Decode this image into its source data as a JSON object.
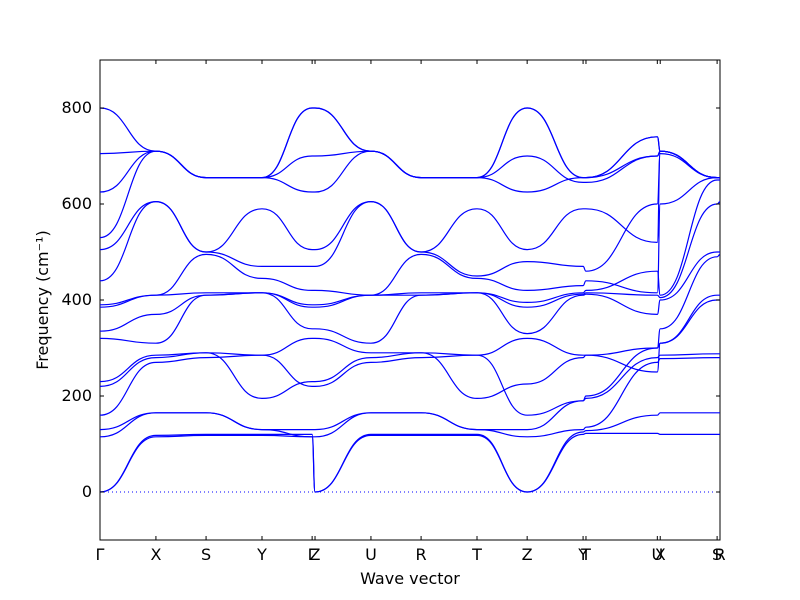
{
  "chart_data": {
    "type": "line",
    "title": "",
    "xlabel": "Wave vector",
    "ylabel": "Frequency (cm⁻¹)",
    "ylim": [
      -100,
      900
    ],
    "yticks": [
      0,
      200,
      400,
      600,
      800
    ],
    "grid": false,
    "legend": "none",
    "line_color": "#0000ff",
    "zero_line_color": "#0000ff",
    "x_ticks": [
      {
        "label": "Γ",
        "value": 0.0
      },
      {
        "label": "X",
        "value": 0.58
      },
      {
        "label": "S",
        "value": 1.1
      },
      {
        "label": "Y",
        "value": 1.68
      },
      {
        "label": "Γ",
        "value": 2.2
      },
      {
        "label": "Z",
        "value": 2.23
      },
      {
        "label": "U",
        "value": 2.81
      },
      {
        "label": "R",
        "value": 3.33
      },
      {
        "label": "T",
        "value": 3.91
      },
      {
        "label": "Z",
        "value": 4.43
      },
      {
        "label": "Y",
        "value": 5.01
      },
      {
        "label": "T",
        "value": 5.04
      },
      {
        "label": "U",
        "value": 5.78
      },
      {
        "label": "X",
        "value": 5.81
      },
      {
        "label": "S",
        "value": 6.4
      },
      {
        "label": "R",
        "value": 6.43
      }
    ],
    "series": [
      {
        "x": [
          0,
          0.58,
          1.1,
          1.68,
          2.2,
          2.23,
          2.81,
          3.33,
          3.91,
          4.43,
          5.01,
          5.04,
          5.78,
          5.81,
          6.4,
          6.43
        ],
        "values": [
          0,
          115,
          118,
          118,
          115,
          0,
          118,
          118,
          118,
          0,
          120,
          122,
          122,
          120,
          120,
          120
        ]
      },
      {
        "x": [
          0,
          0.58,
          1.1,
          1.68,
          2.2,
          2.23,
          2.81,
          3.33,
          3.91,
          4.43,
          5.01,
          5.04,
          5.78,
          5.81,
          6.4,
          6.43
        ],
        "values": [
          0,
          118,
          120,
          120,
          120,
          0,
          120,
          120,
          120,
          0,
          125,
          128,
          160,
          165,
          165,
          165
        ]
      },
      {
        "x": [
          0,
          0.58,
          1.1,
          1.68,
          2.2,
          2.23,
          2.81,
          3.33,
          3.91,
          4.43,
          5.01,
          5.04,
          5.78,
          5.81,
          6.4,
          6.43
        ],
        "values": [
          115,
          165,
          165,
          130,
          115,
          115,
          165,
          165,
          130,
          115,
          130,
          135,
          270,
          278,
          280,
          280
        ]
      },
      {
        "x": [
          0,
          0.58,
          1.1,
          1.68,
          2.2,
          2.23,
          2.81,
          3.33,
          3.91,
          4.43,
          5.01,
          5.04,
          5.78,
          5.81,
          6.4,
          6.43
        ],
        "values": [
          130,
          165,
          165,
          130,
          130,
          130,
          165,
          165,
          130,
          130,
          190,
          195,
          280,
          285,
          288,
          288
        ]
      },
      {
        "x": [
          0,
          0.58,
          1.1,
          1.68,
          2.2,
          2.23,
          2.81,
          3.33,
          3.91,
          4.43,
          5.01,
          5.04,
          5.78,
          5.81,
          6.4,
          6.43
        ],
        "values": [
          160,
          270,
          280,
          285,
          220,
          220,
          270,
          280,
          285,
          160,
          190,
          200,
          300,
          310,
          400,
          400
        ]
      },
      {
        "x": [
          0,
          0.58,
          1.1,
          1.68,
          2.2,
          2.23,
          2.81,
          3.33,
          3.91,
          4.43,
          5.01,
          5.04,
          5.78,
          5.81,
          6.4,
          6.43
        ],
        "values": [
          220,
          280,
          290,
          195,
          230,
          230,
          280,
          290,
          195,
          225,
          280,
          285,
          250,
          310,
          410,
          410
        ]
      },
      {
        "x": [
          0,
          0.58,
          1.1,
          1.68,
          2.2,
          2.23,
          2.81,
          3.33,
          3.91,
          4.43,
          5.01,
          5.04,
          5.78,
          5.81,
          6.4,
          6.43
        ],
        "values": [
          230,
          285,
          290,
          285,
          320,
          320,
          290,
          290,
          285,
          320,
          285,
          285,
          300,
          340,
          490,
          495
        ]
      },
      {
        "x": [
          0,
          0.58,
          1.1,
          1.68,
          2.2,
          2.23,
          2.81,
          3.33,
          3.91,
          4.43,
          5.01,
          5.04,
          5.78,
          5.81,
          6.4,
          6.43
        ],
        "values": [
          320,
          310,
          410,
          415,
          340,
          340,
          310,
          410,
          415,
          330,
          410,
          412,
          370,
          400,
          500,
          500
        ]
      },
      {
        "x": [
          0,
          0.58,
          1.1,
          1.68,
          2.2,
          2.23,
          2.81,
          3.33,
          3.91,
          4.43,
          5.01,
          5.04,
          5.78,
          5.81,
          6.4,
          6.43
        ],
        "values": [
          335,
          370,
          410,
          415,
          385,
          385,
          410,
          410,
          415,
          385,
          412,
          415,
          410,
          405,
          600,
          605
        ]
      },
      {
        "x": [
          0,
          0.58,
          1.1,
          1.68,
          2.2,
          2.23,
          2.81,
          3.33,
          3.91,
          4.43,
          5.01,
          5.04,
          5.78,
          5.81,
          6.4,
          6.43
        ],
        "values": [
          385,
          410,
          415,
          415,
          390,
          390,
          410,
          415,
          415,
          395,
          415,
          420,
          460,
          410,
          650,
          650
        ]
      },
      {
        "x": [
          0,
          0.58,
          1.1,
          1.68,
          2.2,
          2.23,
          2.81,
          3.33,
          3.91,
          4.43,
          5.01,
          5.04,
          5.78,
          5.81,
          6.4,
          6.43
        ],
        "values": [
          390,
          410,
          495,
          445,
          420,
          420,
          410,
          495,
          445,
          420,
          430,
          440,
          415,
          600,
          655,
          655
        ]
      },
      {
        "x": [
          0,
          0.58,
          1.1,
          1.68,
          2.2,
          2.23,
          2.81,
          3.33,
          3.91,
          4.43,
          5.01,
          5.04,
          5.78,
          5.81,
          6.4,
          6.43
        ],
        "values": [
          440,
          605,
          500,
          470,
          470,
          470,
          605,
          500,
          450,
          480,
          470,
          460,
          600,
          705,
          655,
          655
        ]
      },
      {
        "x": [
          0,
          0.58,
          1.1,
          1.68,
          2.2,
          2.23,
          2.81,
          3.33,
          3.91,
          4.43,
          5.01,
          5.04,
          5.78,
          5.81,
          6.4,
          6.43
        ],
        "values": [
          505,
          605,
          500,
          590,
          505,
          505,
          605,
          500,
          590,
          505,
          590,
          590,
          520,
          710,
          655,
          655
        ]
      },
      {
        "x": [
          0,
          0.58,
          1.1,
          1.68,
          2.2,
          2.23,
          2.81,
          3.33,
          3.91,
          4.43,
          5.01,
          5.04,
          5.78,
          5.81,
          6.4,
          6.43
        ],
        "values": [
          530,
          710,
          655,
          655,
          625,
          625,
          710,
          655,
          655,
          625,
          655,
          655,
          740,
          710,
          655,
          655
        ]
      },
      {
        "x": [
          0,
          0.58,
          1.1,
          1.68,
          2.2,
          2.23,
          2.81,
          3.33,
          3.91,
          4.43,
          5.01,
          5.04,
          5.78,
          5.81,
          6.4,
          6.43
        ],
        "values": [
          625,
          710,
          655,
          655,
          700,
          700,
          710,
          655,
          655,
          700,
          645,
          645,
          700,
          710,
          655,
          655
        ]
      },
      {
        "x": [
          0,
          0.58,
          1.1,
          1.68,
          2.2,
          2.23,
          2.81,
          3.33,
          3.91,
          4.43,
          5.01,
          5.04,
          5.78,
          5.81,
          6.4,
          6.43
        ],
        "values": [
          705,
          710,
          655,
          655,
          800,
          800,
          710,
          655,
          655,
          800,
          655,
          655,
          700,
          710,
          655,
          655
        ]
      },
      {
        "x": [
          0,
          0.58,
          1.1,
          1.68,
          2.2,
          2.23,
          2.81,
          3.33,
          3.91,
          4.43,
          5.01,
          5.04,
          5.78,
          5.81,
          6.4,
          6.43
        ],
        "values": [
          800,
          710,
          655,
          655,
          800,
          800,
          710,
          655,
          655,
          800,
          655,
          655,
          740,
          710,
          655,
          655
        ]
      }
    ]
  }
}
